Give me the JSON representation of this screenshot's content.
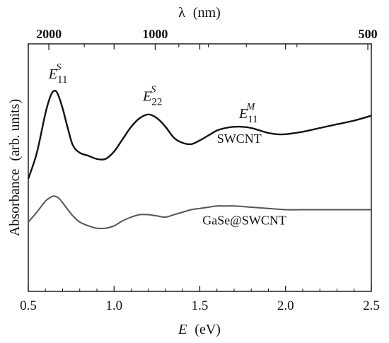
{
  "chart_data": {
    "type": "line",
    "xlabel": "E",
    "xlabel_unit": "(eV)",
    "x2label": "λ",
    "x2label_unit": "(nm)",
    "ylabel": "Absorbance",
    "ylabel_unit": "(arb. units)",
    "xlim": [
      0.5,
      2.5
    ],
    "ylim": [
      0,
      1
    ],
    "x_ticks": [
      0.5,
      1.0,
      1.5,
      2.0,
      2.5
    ],
    "x_tick_labels": [
      "0.5",
      "1.0",
      "1.5",
      "2.0",
      "2.5"
    ],
    "x2_ticks_nm": [
      2000,
      1000,
      500
    ],
    "x2_tick_labels": [
      "2000",
      "1000",
      "500"
    ],
    "grid": false,
    "series": [
      {
        "name": "SWCNT",
        "x": [
          0.5,
          0.55,
          0.6,
          0.63,
          0.65,
          0.67,
          0.7,
          0.73,
          0.76,
          0.8,
          0.85,
          0.9,
          0.95,
          1.0,
          1.05,
          1.1,
          1.15,
          1.2,
          1.25,
          1.3,
          1.35,
          1.4,
          1.45,
          1.5,
          1.55,
          1.6,
          1.65,
          1.7,
          1.75,
          1.8,
          1.85,
          1.9,
          1.95,
          2.0,
          2.1,
          2.2,
          2.3,
          2.4,
          2.5
        ],
        "y": [
          0.455,
          0.56,
          0.72,
          0.79,
          0.81,
          0.8,
          0.74,
          0.66,
          0.59,
          0.56,
          0.548,
          0.535,
          0.535,
          0.565,
          0.615,
          0.665,
          0.7,
          0.715,
          0.7,
          0.665,
          0.62,
          0.6,
          0.595,
          0.61,
          0.63,
          0.65,
          0.66,
          0.665,
          0.665,
          0.66,
          0.65,
          0.64,
          0.635,
          0.635,
          0.645,
          0.66,
          0.675,
          0.69,
          0.71
        ]
      },
      {
        "name": "GaSe@SWCNT",
        "x": [
          0.5,
          0.55,
          0.6,
          0.63,
          0.65,
          0.68,
          0.72,
          0.76,
          0.8,
          0.85,
          0.9,
          0.95,
          1.0,
          1.05,
          1.1,
          1.15,
          1.2,
          1.25,
          1.3,
          1.35,
          1.4,
          1.45,
          1.5,
          1.55,
          1.6,
          1.65,
          1.7,
          1.8,
          1.9,
          2.0,
          2.1,
          2.2,
          2.3,
          2.4,
          2.5
        ],
        "y": [
          0.28,
          0.32,
          0.365,
          0.38,
          0.385,
          0.375,
          0.34,
          0.305,
          0.28,
          0.265,
          0.255,
          0.255,
          0.265,
          0.285,
          0.3,
          0.31,
          0.31,
          0.305,
          0.3,
          0.31,
          0.32,
          0.33,
          0.335,
          0.34,
          0.345,
          0.345,
          0.345,
          0.34,
          0.335,
          0.33,
          0.33,
          0.33,
          0.33,
          0.33,
          0.33
        ]
      }
    ],
    "annotations": [
      {
        "base": "E",
        "sub": "11",
        "sup": "S",
        "x": 0.66,
        "y": 0.86
      },
      {
        "base": "E",
        "sub": "22",
        "sup": "S",
        "x": 1.21,
        "y": 0.77
      },
      {
        "base": "E",
        "sub": "11",
        "sup": "M",
        "x": 1.77,
        "y": 0.7
      }
    ],
    "series_labels": [
      {
        "text": "SWCNT",
        "x": 1.73,
        "y": 0.6
      },
      {
        "text": "GaSe@SWCNT",
        "x": 1.76,
        "y": 0.27
      }
    ]
  }
}
